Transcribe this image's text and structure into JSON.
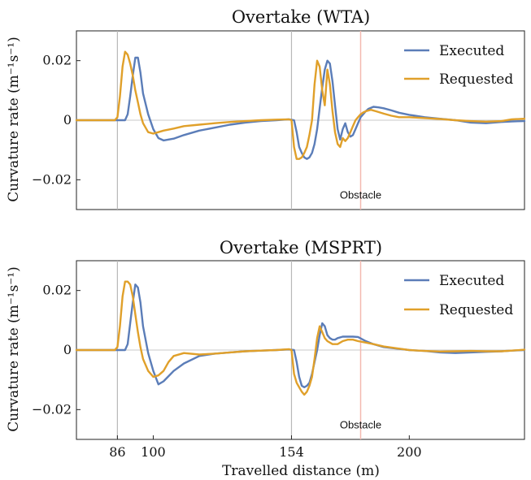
{
  "xlabel": "Travelled distance (m)",
  "colors": {
    "executed": "#5b7db8",
    "requested": "#e0a02a",
    "obstacle_line": "#f3b9b0",
    "marker_line": "#b8b8b8"
  },
  "chart_data": [
    {
      "type": "line",
      "title": "Overtake (WTA)",
      "ylabel": "Curvature rate (m⁻¹s⁻¹)",
      "xlim": [
        70,
        245
      ],
      "ylim": [
        -0.03,
        0.03
      ],
      "yticks": [
        -0.02,
        0,
        0.02
      ],
      "ytick_labels": [
        "−0.02",
        "0",
        "0.02"
      ],
      "vlines": [
        86,
        154
      ],
      "obstacle": {
        "x": 181,
        "label": "Obstacle"
      },
      "legend": "top-right",
      "series": [
        {
          "name": "Executed",
          "color": "#5b7db8",
          "x": [
            70,
            80,
            86,
            89,
            90,
            91,
            92,
            93,
            94,
            95,
            96,
            98,
            100,
            102,
            104,
            108,
            112,
            118,
            124,
            130,
            136,
            142,
            148,
            153,
            155,
            156,
            157,
            158,
            159,
            160,
            161,
            162,
            163,
            164,
            165,
            166,
            167,
            168,
            169,
            170,
            171,
            172,
            173,
            174,
            175,
            176,
            177,
            178,
            179,
            180,
            181,
            182,
            183,
            184,
            186,
            188,
            190,
            193,
            196,
            200,
            206,
            212,
            218,
            224,
            230,
            236,
            240,
            245
          ],
          "y": [
            0.0,
            0.0,
            0.0,
            0.0,
            0.002,
            0.008,
            0.015,
            0.021,
            0.021,
            0.016,
            0.009,
            0.002,
            -0.003,
            -0.006,
            -0.0068,
            -0.0062,
            -0.005,
            -0.0035,
            -0.0025,
            -0.0015,
            -0.0008,
            -0.0003,
            0.0,
            0.0003,
            0.0,
            -0.004,
            -0.009,
            -0.011,
            -0.0125,
            -0.013,
            -0.0125,
            -0.011,
            -0.008,
            -0.003,
            0.004,
            0.011,
            0.017,
            0.02,
            0.019,
            0.013,
            0.005,
            -0.003,
            -0.0065,
            -0.003,
            -0.001,
            -0.004,
            -0.0055,
            -0.005,
            -0.003,
            -0.001,
            0.001,
            0.002,
            0.003,
            0.0038,
            0.0045,
            0.0043,
            0.004,
            0.0033,
            0.0025,
            0.0018,
            0.001,
            0.0005,
            0.0,
            -0.0008,
            -0.001,
            -0.0006,
            -0.0004,
            -0.0003
          ]
        },
        {
          "name": "Requested",
          "color": "#e0a02a",
          "x": [
            70,
            80,
            85,
            86,
            87,
            88,
            89,
            90,
            91,
            92,
            93,
            94,
            95,
            96,
            98,
            100,
            102,
            104,
            108,
            112,
            118,
            124,
            130,
            136,
            142,
            148,
            153,
            154,
            155,
            156,
            157,
            158,
            159,
            160,
            161,
            162,
            163,
            164,
            165,
            166,
            167,
            168,
            169,
            170,
            171,
            172,
            173,
            174,
            175,
            176,
            177,
            178,
            179,
            180,
            181,
            182,
            183,
            185,
            187,
            190,
            193,
            196,
            200,
            206,
            212,
            218,
            224,
            230,
            236,
            240,
            245
          ],
          "y": [
            0.0,
            0.0,
            0.0,
            0.001,
            0.008,
            0.018,
            0.023,
            0.022,
            0.019,
            0.015,
            0.01,
            0.006,
            0.002,
            -0.001,
            -0.004,
            -0.0045,
            -0.004,
            -0.0035,
            -0.0028,
            -0.002,
            -0.0015,
            -0.001,
            -0.0006,
            -0.0003,
            0.0,
            0.0002,
            0.0003,
            0.0,
            -0.009,
            -0.013,
            -0.013,
            -0.0125,
            -0.011,
            -0.009,
            -0.005,
            0.0,
            0.012,
            0.02,
            0.018,
            0.01,
            0.005,
            0.017,
            0.012,
            0.003,
            -0.004,
            -0.008,
            -0.009,
            -0.006,
            -0.007,
            -0.006,
            -0.004,
            -0.002,
            0.0,
            0.001,
            0.002,
            0.0026,
            0.003,
            0.0035,
            0.003,
            0.0022,
            0.0015,
            0.001,
            0.001,
            0.0007,
            0.0004,
            0.0,
            -0.0003,
            -0.0005,
            -0.0003,
            0.0003,
            0.0005
          ]
        }
      ]
    },
    {
      "type": "line",
      "title": "Overtake (MSPRT)",
      "ylabel": "Curvature rate (m⁻¹s⁻¹)",
      "xlim": [
        70,
        245
      ],
      "ylim": [
        -0.03,
        0.03
      ],
      "yticks": [
        -0.02,
        0,
        0.02
      ],
      "ytick_labels": [
        "−0.02",
        "0",
        "0.02"
      ],
      "xticks": [
        86,
        100,
        154,
        200
      ],
      "vlines": [
        86,
        154
      ],
      "obstacle": {
        "x": 181,
        "label": "Obstacle"
      },
      "legend": "top-right",
      "series": [
        {
          "name": "Executed",
          "color": "#5b7db8",
          "x": [
            70,
            80,
            86,
            89,
            90,
            91,
            92,
            93,
            94,
            95,
            96,
            98,
            100,
            102,
            104,
            108,
            112,
            118,
            124,
            130,
            136,
            142,
            148,
            153,
            155,
            156,
            157,
            158,
            159,
            160,
            161,
            162,
            163,
            164,
            165,
            166,
            167,
            168,
            169,
            170,
            171,
            172,
            174,
            176,
            178,
            180,
            183,
            186,
            190,
            195,
            200,
            206,
            212,
            218,
            224,
            230,
            236,
            240,
            245
          ],
          "y": [
            0.0,
            0.0,
            0.0,
            0.0,
            0.002,
            0.009,
            0.016,
            0.022,
            0.021,
            0.016,
            0.008,
            -0.001,
            -0.007,
            -0.0115,
            -0.0105,
            -0.007,
            -0.0045,
            -0.002,
            -0.0012,
            -0.0008,
            -0.0004,
            -0.0002,
            0.0,
            0.0002,
            0.0,
            -0.004,
            -0.009,
            -0.012,
            -0.0125,
            -0.012,
            -0.011,
            -0.008,
            -0.004,
            0.0,
            0.005,
            0.009,
            0.008,
            0.005,
            0.004,
            0.0035,
            0.0035,
            0.004,
            0.0045,
            0.0045,
            0.0045,
            0.0044,
            0.003,
            0.002,
            0.001,
            0.0005,
            0.0,
            -0.0003,
            -0.0008,
            -0.001,
            -0.0008,
            -0.0006,
            -0.0004,
            -0.0002,
            0.0
          ]
        },
        {
          "name": "Requested",
          "color": "#e0a02a",
          "x": [
            70,
            80,
            85,
            86,
            87,
            88,
            89,
            90,
            91,
            92,
            93,
            94,
            95,
            96,
            98,
            100,
            102,
            104,
            106,
            108,
            112,
            118,
            124,
            130,
            136,
            142,
            148,
            153,
            154,
            155,
            156,
            157,
            158,
            159,
            160,
            161,
            162,
            163,
            164,
            165,
            166,
            167,
            168,
            170,
            172,
            174,
            176,
            178,
            180,
            183,
            186,
            190,
            195,
            200,
            206,
            212,
            218,
            224,
            230,
            236,
            240,
            245
          ],
          "y": [
            0.0,
            0.0,
            0.0,
            0.001,
            0.008,
            0.018,
            0.023,
            0.023,
            0.022,
            0.018,
            0.012,
            0.006,
            0.001,
            -0.003,
            -0.007,
            -0.009,
            -0.0085,
            -0.007,
            -0.004,
            -0.002,
            -0.001,
            -0.0015,
            -0.0012,
            -0.0008,
            -0.0004,
            -0.0002,
            0.0,
            0.0003,
            0.0,
            -0.008,
            -0.011,
            -0.0125,
            -0.014,
            -0.015,
            -0.014,
            -0.012,
            -0.009,
            -0.003,
            0.004,
            0.008,
            0.006,
            0.004,
            0.003,
            0.002,
            0.002,
            0.003,
            0.0035,
            0.0035,
            0.003,
            0.0025,
            0.002,
            0.0012,
            0.0006,
            0.0,
            -0.0003,
            -0.0005,
            -0.0004,
            -0.0003,
            -0.0004,
            -0.0004,
            -0.0002,
            0.0001
          ]
        }
      ]
    }
  ]
}
